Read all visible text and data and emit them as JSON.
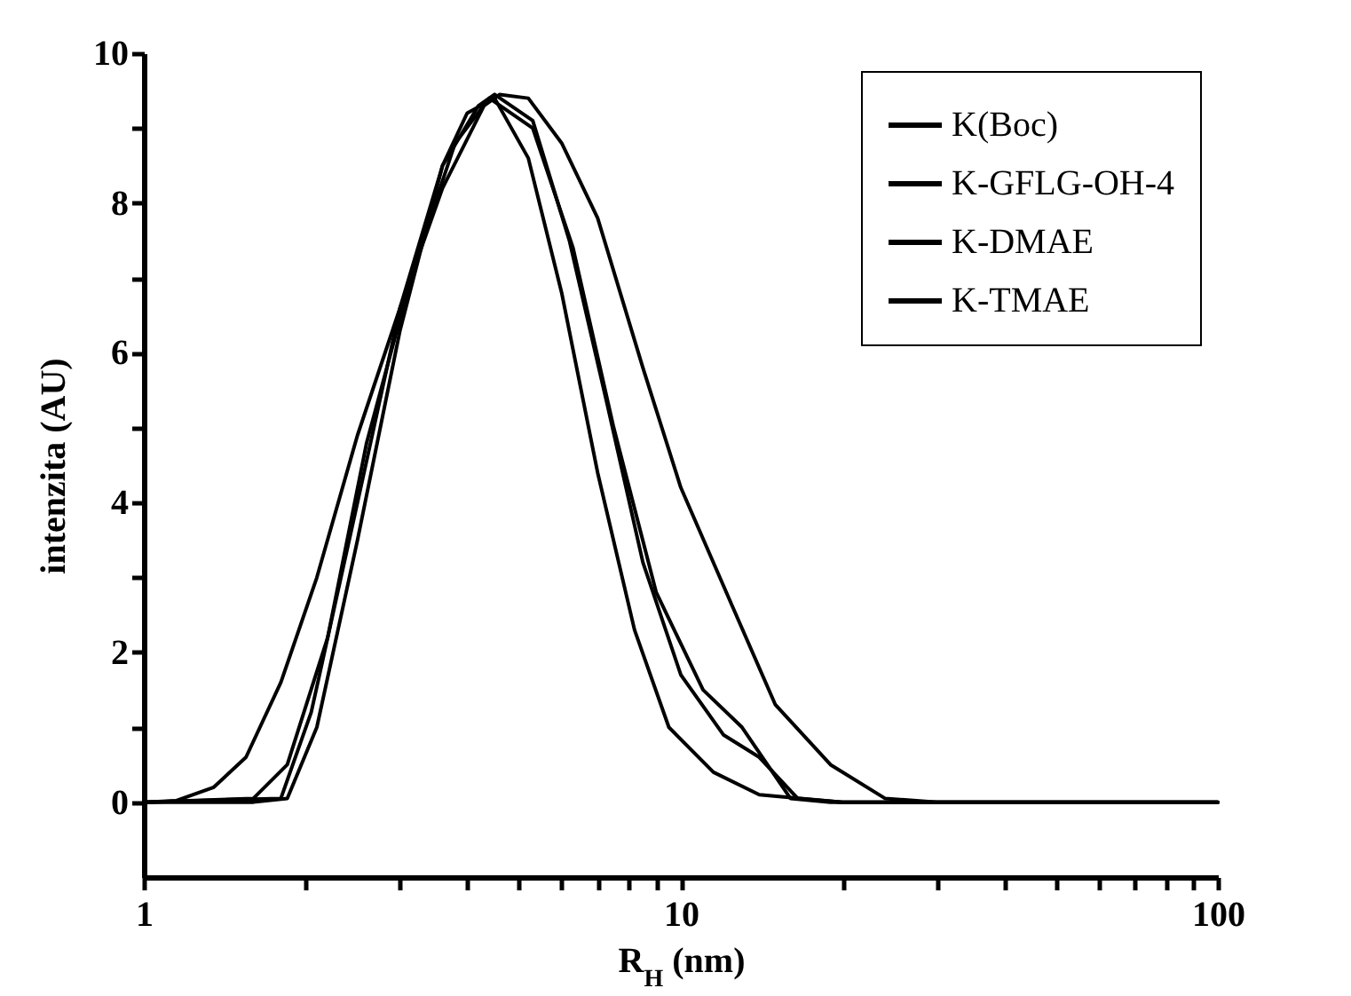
{
  "chart_data": {
    "type": "line",
    "xlabel": "R$_{H}$ (nm)",
    "ylabel": "intenzita (AU)",
    "log": "x",
    "xlim": [
      1,
      100
    ],
    "xticks": [
      1,
      {
        "value": 2,
        "label": null
      },
      {
        "value": 3,
        "label": null
      },
      {
        "value": 4,
        "label": null
      },
      {
        "value": 5,
        "label": null
      },
      {
        "value": 6,
        "label": null
      },
      {
        "value": 7,
        "label": null
      },
      {
        "value": 8,
        "label": null
      },
      {
        "value": 9,
        "label": null
      },
      10,
      {
        "value": 20,
        "label": null
      },
      {
        "value": 30,
        "label": null
      },
      {
        "value": 40,
        "label": null
      },
      {
        "value": 50,
        "label": null
      },
      {
        "value": 60,
        "label": null
      },
      {
        "value": 70,
        "label": null
      },
      {
        "value": 80,
        "label": null
      },
      {
        "value": 90,
        "label": null
      },
      100
    ],
    "ylim": [
      -1,
      10
    ],
    "yticks": [
      0,
      {
        "value": 1,
        "label": null
      },
      2,
      {
        "value": 3,
        "label": null
      },
      4,
      {
        "value": 5,
        "label": null
      },
      6,
      {
        "value": 7,
        "label": null
      },
      8,
      {
        "value": 9,
        "label": null
      },
      10
    ],
    "grid": false,
    "legend": "top right",
    "marker": "none",
    "line_style": "solid",
    "series": [
      {
        "name": "K(Boc)",
        "color": "#000000",
        "x": [
          1,
          1.6,
          1.85,
          2.1,
          2.5,
          3.0,
          3.6,
          4.0,
          4.5,
          5.2,
          6.0,
          7.0,
          8.2,
          9.5,
          11.5,
          14,
          20,
          100
        ],
        "values": [
          0,
          0,
          0.05,
          1,
          3.5,
          6.3,
          8.5,
          9.2,
          9.4,
          8.6,
          6.8,
          4.4,
          2.3,
          1.0,
          0.4,
          0.1,
          0,
          0
        ]
      },
      {
        "name": "K-GFLG-OH-4",
        "color": "#000000",
        "x": [
          1,
          1.8,
          2.05,
          2.5,
          3.0,
          3.6,
          4.2,
          4.5,
          5.3,
          6.2,
          7.3,
          8.5,
          10,
          12,
          14,
          16.5,
          20,
          100
        ],
        "values": [
          0,
          0.05,
          1.2,
          4,
          6.6,
          8.5,
          9.3,
          9.45,
          9.1,
          7.5,
          5.3,
          3.2,
          1.7,
          0.9,
          0.6,
          0.05,
          0,
          0
        ]
      },
      {
        "name": "K-DMAE",
        "color": "#000000",
        "x": [
          1,
          1.6,
          1.85,
          2.2,
          2.6,
          3.2,
          3.8,
          4.4,
          5.3,
          6.3,
          7.5,
          9,
          11,
          13,
          16,
          19,
          100
        ],
        "values": [
          0,
          0.05,
          0.5,
          2.2,
          4.8,
          7.2,
          8.8,
          9.4,
          9.0,
          7.4,
          5.0,
          2.8,
          1.5,
          1.0,
          0.05,
          0,
          0
        ]
      },
      {
        "name": "K-TMAE",
        "color": "#000000",
        "x": [
          1,
          1.15,
          1.35,
          1.55,
          1.8,
          2.1,
          2.5,
          3.0,
          3.6,
          4.3,
          4.6,
          5.2,
          6.0,
          7.0,
          8.5,
          10,
          12.5,
          15,
          19,
          24,
          30,
          100
        ],
        "values": [
          0,
          0.02,
          0.2,
          0.6,
          1.6,
          3.0,
          4.9,
          6.6,
          8.2,
          9.3,
          9.45,
          9.4,
          8.8,
          7.8,
          5.8,
          4.2,
          2.6,
          1.3,
          0.5,
          0.05,
          0,
          0
        ]
      }
    ]
  }
}
